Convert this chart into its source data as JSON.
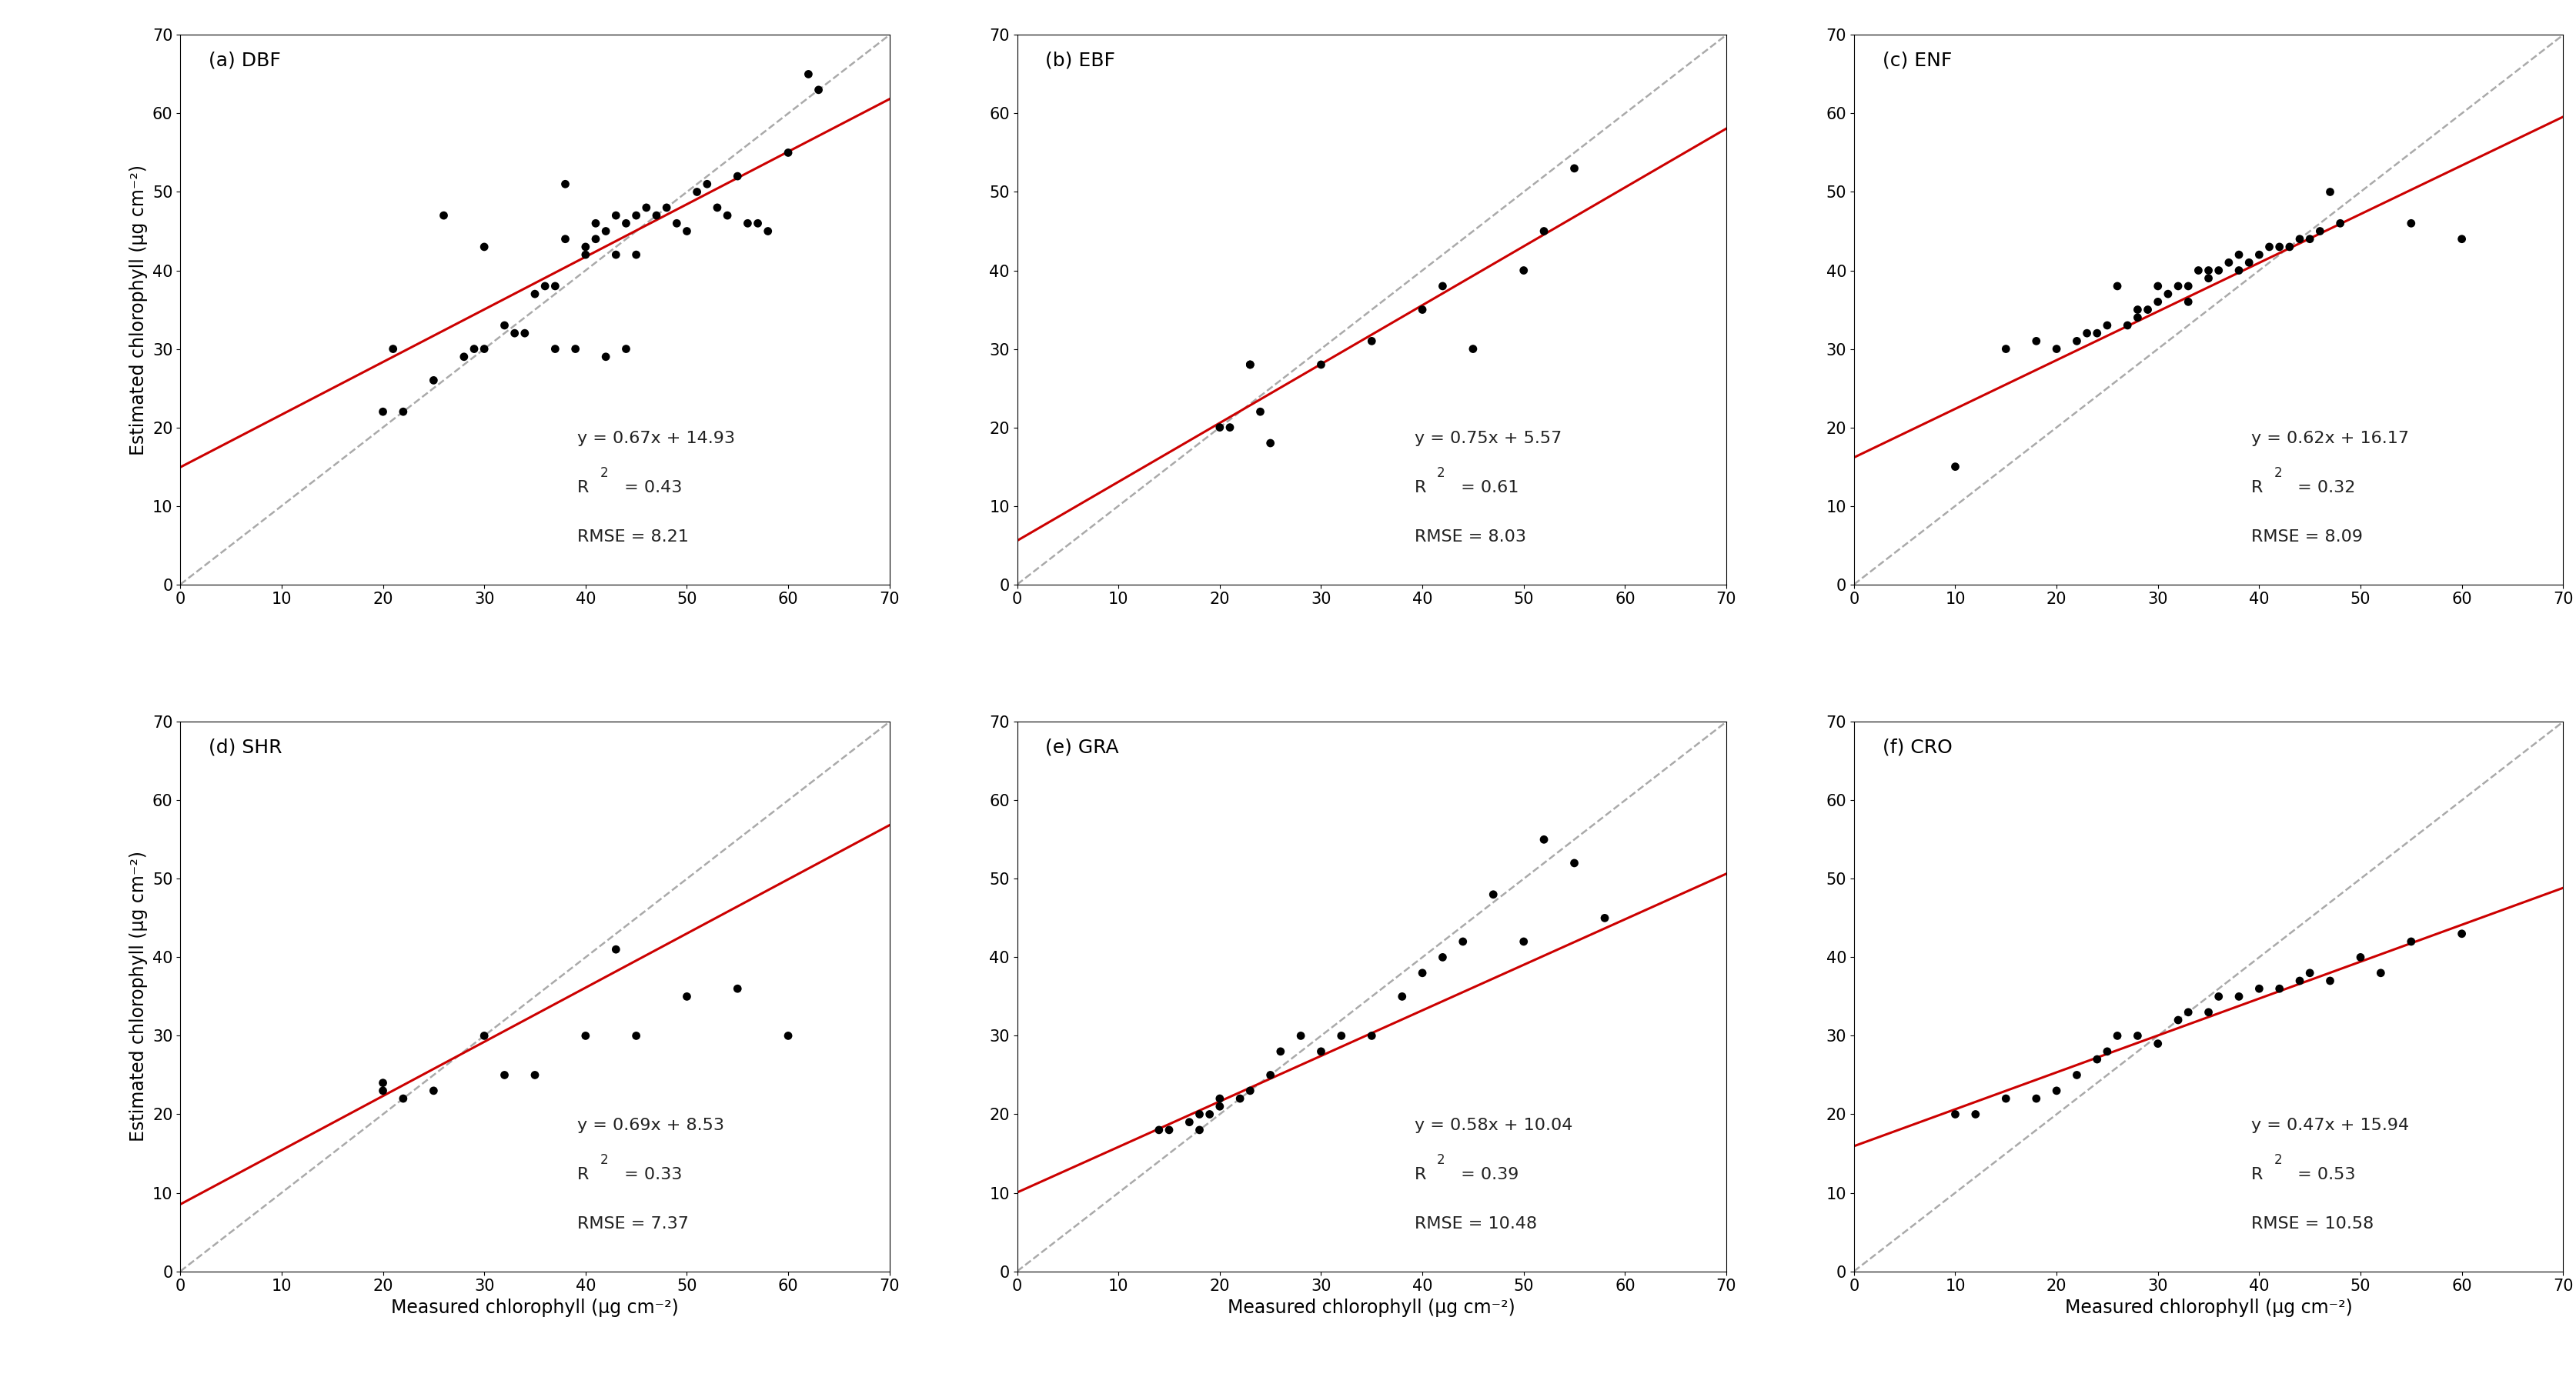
{
  "panels": [
    {
      "label": "(a) DBF",
      "eq": "y = 0.67x + 14.93",
      "r2": "R² = 0.43",
      "rmse": "RMSE = 8.21",
      "slope": 0.67,
      "intercept": 14.93,
      "x_range": [
        0,
        70
      ],
      "y_range": [
        0,
        70
      ],
      "scatter_x": [
        20,
        21,
        22,
        25,
        26,
        28,
        29,
        30,
        30,
        32,
        33,
        34,
        35,
        36,
        37,
        37,
        38,
        38,
        39,
        40,
        40,
        41,
        41,
        42,
        42,
        43,
        43,
        44,
        44,
        45,
        45,
        46,
        47,
        48,
        49,
        50,
        51,
        52,
        53,
        54,
        55,
        56,
        57,
        58,
        60,
        62,
        63
      ],
      "scatter_y": [
        22,
        30,
        22,
        26,
        47,
        29,
        30,
        30,
        43,
        33,
        32,
        32,
        37,
        38,
        30,
        38,
        44,
        51,
        30,
        42,
        43,
        44,
        46,
        29,
        45,
        42,
        47,
        30,
        46,
        42,
        47,
        48,
        47,
        48,
        46,
        45,
        50,
        51,
        48,
        47,
        52,
        46,
        46,
        45,
        55,
        65,
        63
      ]
    },
    {
      "label": "(b) EBF",
      "eq": "y = 0.75x + 5.57",
      "r2": "R² = 0.61",
      "rmse": "RMSE = 8.03",
      "slope": 0.75,
      "intercept": 5.57,
      "x_range": [
        0,
        70
      ],
      "y_range": [
        0,
        70
      ],
      "scatter_x": [
        20,
        21,
        23,
        23,
        24,
        25,
        30,
        35,
        40,
        42,
        45,
        50,
        52,
        55
      ],
      "scatter_y": [
        20,
        20,
        28,
        28,
        22,
        18,
        28,
        31,
        35,
        38,
        30,
        40,
        45,
        53
      ]
    },
    {
      "label": "(c) ENF",
      "eq": "y = 0.62x + 16.17",
      "r2": "R² = 0.32",
      "rmse": "RMSE = 8.09",
      "slope": 0.62,
      "intercept": 16.17,
      "x_range": [
        0,
        70
      ],
      "y_range": [
        0,
        70
      ],
      "scatter_x": [
        10,
        15,
        18,
        20,
        22,
        23,
        24,
        25,
        26,
        27,
        28,
        28,
        29,
        30,
        30,
        31,
        32,
        33,
        33,
        34,
        35,
        35,
        36,
        37,
        38,
        38,
        39,
        40,
        41,
        42,
        43,
        44,
        45,
        46,
        47,
        48,
        55,
        60
      ],
      "scatter_y": [
        15,
        30,
        31,
        30,
        31,
        32,
        32,
        33,
        38,
        33,
        34,
        35,
        35,
        36,
        38,
        37,
        38,
        36,
        38,
        40,
        40,
        39,
        40,
        41,
        40,
        42,
        41,
        42,
        43,
        43,
        43,
        44,
        44,
        45,
        50,
        46,
        46,
        44
      ]
    },
    {
      "label": "(d) SHR",
      "eq": "y = 0.69x + 8.53",
      "r2": "R² = 0.33",
      "rmse": "RMSE = 7.37",
      "slope": 0.69,
      "intercept": 8.53,
      "x_range": [
        0,
        70
      ],
      "y_range": [
        0,
        70
      ],
      "scatter_x": [
        20,
        20,
        22,
        25,
        30,
        32,
        35,
        40,
        43,
        45,
        50,
        55,
        60
      ],
      "scatter_y": [
        23,
        24,
        22,
        23,
        30,
        25,
        25,
        30,
        41,
        30,
        35,
        36,
        30
      ]
    },
    {
      "label": "(e) GRA",
      "eq": "y = 0.58x + 10.04",
      "r2": "R² = 0.39",
      "rmse": "RMSE = 10.48",
      "slope": 0.58,
      "intercept": 10.04,
      "x_range": [
        0,
        70
      ],
      "y_range": [
        0,
        70
      ],
      "scatter_x": [
        14,
        15,
        17,
        18,
        18,
        19,
        20,
        20,
        22,
        23,
        25,
        26,
        28,
        30,
        32,
        35,
        38,
        40,
        42,
        44,
        47,
        50,
        52,
        55,
        58
      ],
      "scatter_y": [
        18,
        18,
        19,
        18,
        20,
        20,
        21,
        22,
        22,
        23,
        25,
        28,
        30,
        28,
        30,
        30,
        35,
        38,
        40,
        42,
        48,
        42,
        55,
        52,
        45
      ]
    },
    {
      "label": "(f) CRO",
      "eq": "y = 0.47x + 15.94",
      "r2": "R² = 0.53",
      "rmse": "RMSE = 10.58",
      "slope": 0.47,
      "intercept": 15.94,
      "x_range": [
        0,
        70
      ],
      "y_range": [
        0,
        70
      ],
      "scatter_x": [
        10,
        12,
        15,
        18,
        20,
        22,
        24,
        25,
        26,
        28,
        30,
        32,
        33,
        35,
        36,
        38,
        40,
        42,
        44,
        45,
        47,
        50,
        52,
        55,
        60
      ],
      "scatter_y": [
        20,
        20,
        22,
        22,
        23,
        25,
        27,
        28,
        30,
        30,
        29,
        32,
        33,
        33,
        35,
        35,
        36,
        36,
        37,
        38,
        37,
        40,
        38,
        42,
        43
      ]
    }
  ],
  "xlabel": "Measured chlorophyll (μg cm⁻²)",
  "ylabel": "Estimated chlorophyll (μg cm⁻²)",
  "tick_vals": [
    0,
    10,
    20,
    30,
    40,
    50,
    60,
    70
  ],
  "dot_color": "#000000",
  "line_color": "#cc0000",
  "diag_color": "#aaaaaa",
  "background": "#ffffff",
  "annotation_fontsize": 16,
  "label_fontsize": 17,
  "tick_fontsize": 15,
  "panel_label_fontsize": 18
}
